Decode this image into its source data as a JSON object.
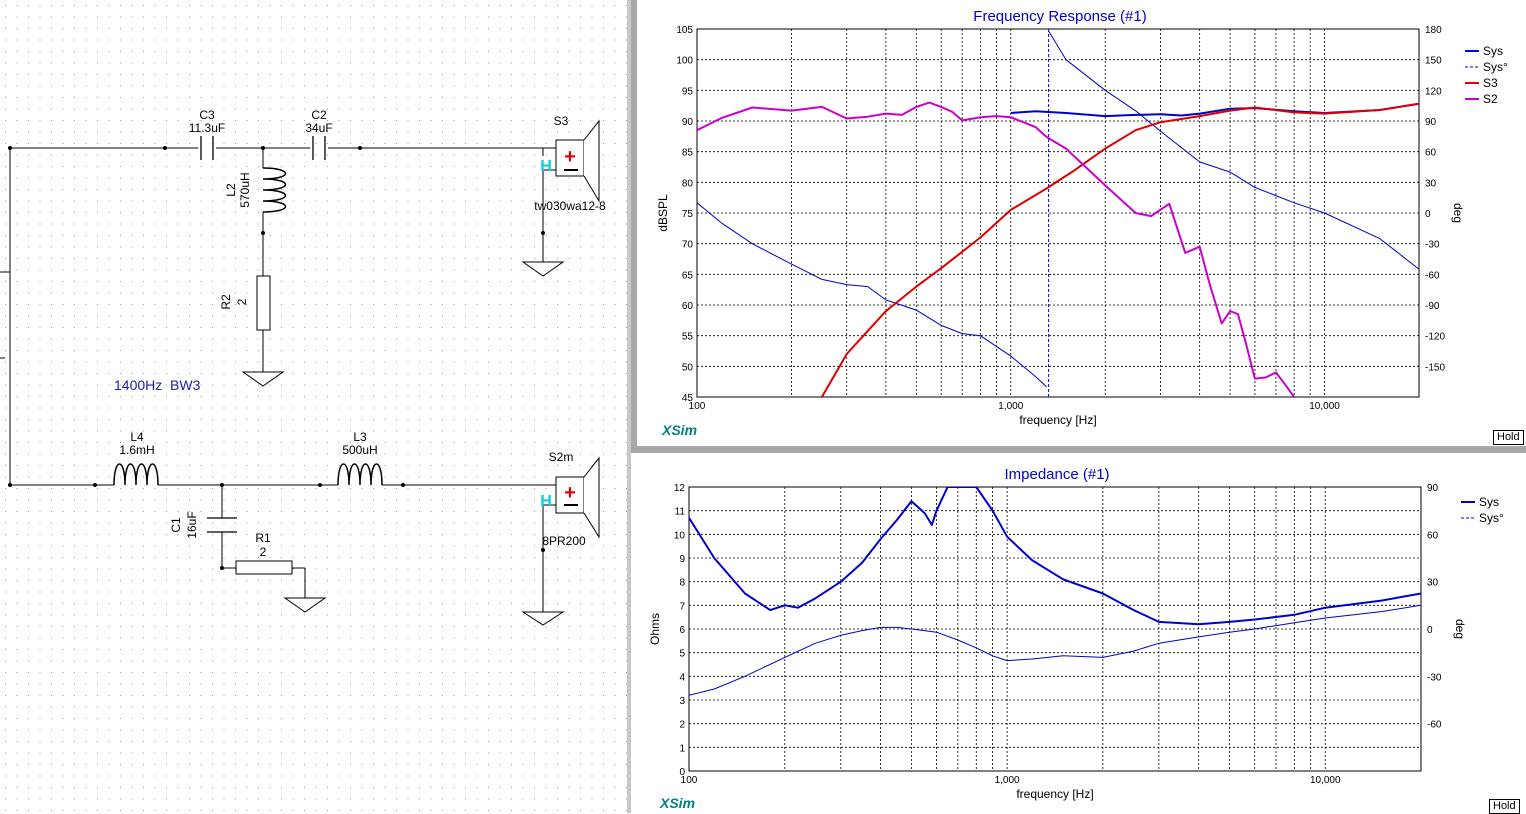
{
  "schematic": {
    "c3": {
      "name": "C3",
      "value": "11.3uF"
    },
    "c2": {
      "name": "C2",
      "value": "34uF"
    },
    "l2": {
      "name": "L2",
      "value": "570uH"
    },
    "r2": {
      "name": "R2",
      "value": "2"
    },
    "l4": {
      "name": "L4",
      "value": "1.6mH"
    },
    "l3": {
      "name": "L3",
      "value": "500uH"
    },
    "c1": {
      "name": "C1",
      "value": "16uF"
    },
    "r1": {
      "name": "R1",
      "value": "2"
    },
    "s3": {
      "name": "S3",
      "model": "tw030wa12-8"
    },
    "s2": {
      "name": "S2m",
      "model": "8PR200"
    },
    "note": "1400Hz  BW3",
    "h_mark": "H",
    "plus_mark": "+"
  },
  "fr_panel": {
    "title": "Frequency Response (#1)",
    "brand": "XSim",
    "hold_button": "Hold",
    "legend": [
      "Sys",
      "Sys°",
      "S3",
      "S2"
    ]
  },
  "imp_panel": {
    "title": "Impedance (#1)",
    "brand": "XSim",
    "hold_button": "Hold",
    "legend": [
      "Sys",
      "Sys°"
    ]
  },
  "colors": {
    "sys": "#0000cc",
    "s3": "#dd0000",
    "s2": "#cc00cc",
    "title": "#0000cc",
    "brand": "#008080",
    "frame": "#a0a0a0"
  },
  "chart_data": [
    {
      "type": "line",
      "title": "Frequency Response (#1)",
      "xlabel": "frequency [Hz]",
      "ylabel": "dBSPL",
      "y2label": "deg",
      "xscale": "log",
      "xlim": [
        100,
        20000
      ],
      "ylim": [
        45,
        105
      ],
      "y2lim": [
        -180,
        180
      ],
      "xticks": [
        "100",
        "1,000",
        "10,000"
      ],
      "yticks": [
        "105",
        "100",
        "95",
        "90",
        "85",
        "80",
        "75",
        "70",
        "65",
        "60",
        "55",
        "50",
        "45"
      ],
      "y2ticks": [
        "180",
        "150",
        "120",
        "90",
        "60",
        "30",
        "0",
        "-30",
        "-60",
        "-90",
        "-120",
        "-150"
      ],
      "grid": true,
      "legend_position": "top-right",
      "marker_x": 1320,
      "series": [
        {
          "name": "Sys",
          "axis": "left",
          "x": [
            1000,
            1200,
            1500,
            2000,
            2500,
            3000,
            3500,
            4000,
            5000,
            6000,
            8000,
            10000,
            15000,
            20000
          ],
          "y": [
            91.3,
            91.6,
            91.3,
            90.8,
            91.0,
            91.1,
            90.9,
            91.2,
            92.0,
            92.1,
            91.6,
            91.3,
            91.8,
            92.8
          ]
        },
        {
          "name": "Sys°",
          "axis": "right",
          "x": [
            100,
            120,
            150,
            200,
            250,
            300,
            350,
            400,
            500,
            600,
            700,
            800,
            1000,
            1200,
            1300
          ],
          "y": [
            10,
            -10,
            -30,
            -50,
            -65,
            -70,
            -72,
            -85,
            -95,
            -110,
            -118,
            -120,
            -140,
            -160,
            -170
          ]
        },
        {
          "name": "Sys°",
          "axis": "right",
          "x": [
            1320,
            1500,
            2000,
            2500,
            3000,
            4000,
            5000,
            6000,
            8000,
            10000,
            15000,
            20000
          ],
          "y": [
            178,
            150,
            120,
            100,
            80,
            50,
            40,
            25,
            10,
            0,
            -25,
            -55
          ]
        },
        {
          "name": "S3",
          "axis": "left",
          "x": [
            250,
            300,
            400,
            500,
            600,
            800,
            1000,
            1300,
            1600,
            2000,
            2500,
            3000,
            4000,
            5000,
            6000,
            8000,
            10000,
            15000,
            20000
          ],
          "y": [
            45,
            52,
            59,
            63,
            66,
            71,
            75.5,
            79,
            82,
            85.5,
            88.5,
            89.8,
            90.8,
            91.7,
            92.2,
            91.4,
            91.2,
            91.8,
            92.8
          ]
        },
        {
          "name": "S2",
          "axis": "left",
          "x": [
            100,
            120,
            150,
            200,
            250,
            300,
            350,
            400,
            450,
            500,
            550,
            600,
            650,
            700,
            800,
            900,
            1000,
            1200,
            1300,
            1500,
            2000,
            2500,
            2800,
            3200,
            3600,
            4000,
            4300,
            4700,
            5000,
            5300,
            5600,
            6000,
            6500,
            7000,
            7500,
            8000
          ],
          "y": [
            88.5,
            90.5,
            92.2,
            91.7,
            92.3,
            90.4,
            90.7,
            91.2,
            91.0,
            92.3,
            93.0,
            92.3,
            91.5,
            90.1,
            90.6,
            90.8,
            90.6,
            89.0,
            87.4,
            85.5,
            79.5,
            75.0,
            74.5,
            76.5,
            68.5,
            69.5,
            63.5,
            57.0,
            59.0,
            58.5,
            54.0,
            48.0,
            48.2,
            49.0,
            47.0,
            45.0
          ]
        }
      ]
    },
    {
      "type": "line",
      "title": "Impedance (#1)",
      "xlabel": "frequency [Hz]",
      "ylabel": "Ohms",
      "y2label": "deg",
      "xscale": "log",
      "xlim": [
        100,
        20000
      ],
      "ylim": [
        0,
        12
      ],
      "y2lim": [
        -90,
        90
      ],
      "xticks": [
        "100",
        "1,000",
        "10,000"
      ],
      "yticks": [
        "12",
        "11",
        "10",
        "9",
        "8",
        "7",
        "6",
        "5",
        "4",
        "3",
        "2",
        "1",
        "0"
      ],
      "y2ticks": [
        "90",
        "60",
        "30",
        "0",
        "-30",
        "-60"
      ],
      "grid": true,
      "legend_position": "top-right",
      "series": [
        {
          "name": "Sys",
          "axis": "left",
          "x": [
            100,
            120,
            150,
            180,
            200,
            220,
            250,
            300,
            350,
            400,
            450,
            500,
            550,
            580,
            600,
            650,
            700,
            800,
            900,
            1000,
            1200,
            1500,
            2000,
            2500,
            3000,
            4000,
            5000,
            6000,
            8000,
            10000,
            15000,
            20000
          ],
          "y": [
            10.7,
            9.0,
            7.5,
            6.8,
            7.0,
            6.9,
            7.3,
            8.0,
            8.8,
            9.8,
            10.6,
            11.4,
            10.9,
            10.4,
            11.0,
            12.0,
            12.0,
            12.0,
            11.0,
            9.9,
            8.9,
            8.1,
            7.5,
            6.8,
            6.3,
            6.2,
            6.3,
            6.4,
            6.6,
            6.9,
            7.2,
            7.5
          ]
        },
        {
          "name": "Sys°",
          "axis": "right",
          "x": [
            100,
            120,
            150,
            200,
            250,
            300,
            350,
            400,
            450,
            500,
            550,
            600,
            700,
            800,
            900,
            1000,
            1200,
            1500,
            2000,
            2500,
            3000,
            4000,
            5000,
            6000,
            8000,
            10000,
            15000,
            20000
          ],
          "y": [
            -42,
            -38,
            -30,
            -18,
            -9,
            -4,
            -1,
            1,
            1,
            0,
            -1,
            -2,
            -7,
            -12,
            -17,
            -20,
            -19,
            -17,
            -18,
            -14,
            -9,
            -5,
            -2,
            0,
            4,
            7,
            11,
            15
          ]
        }
      ]
    }
  ]
}
